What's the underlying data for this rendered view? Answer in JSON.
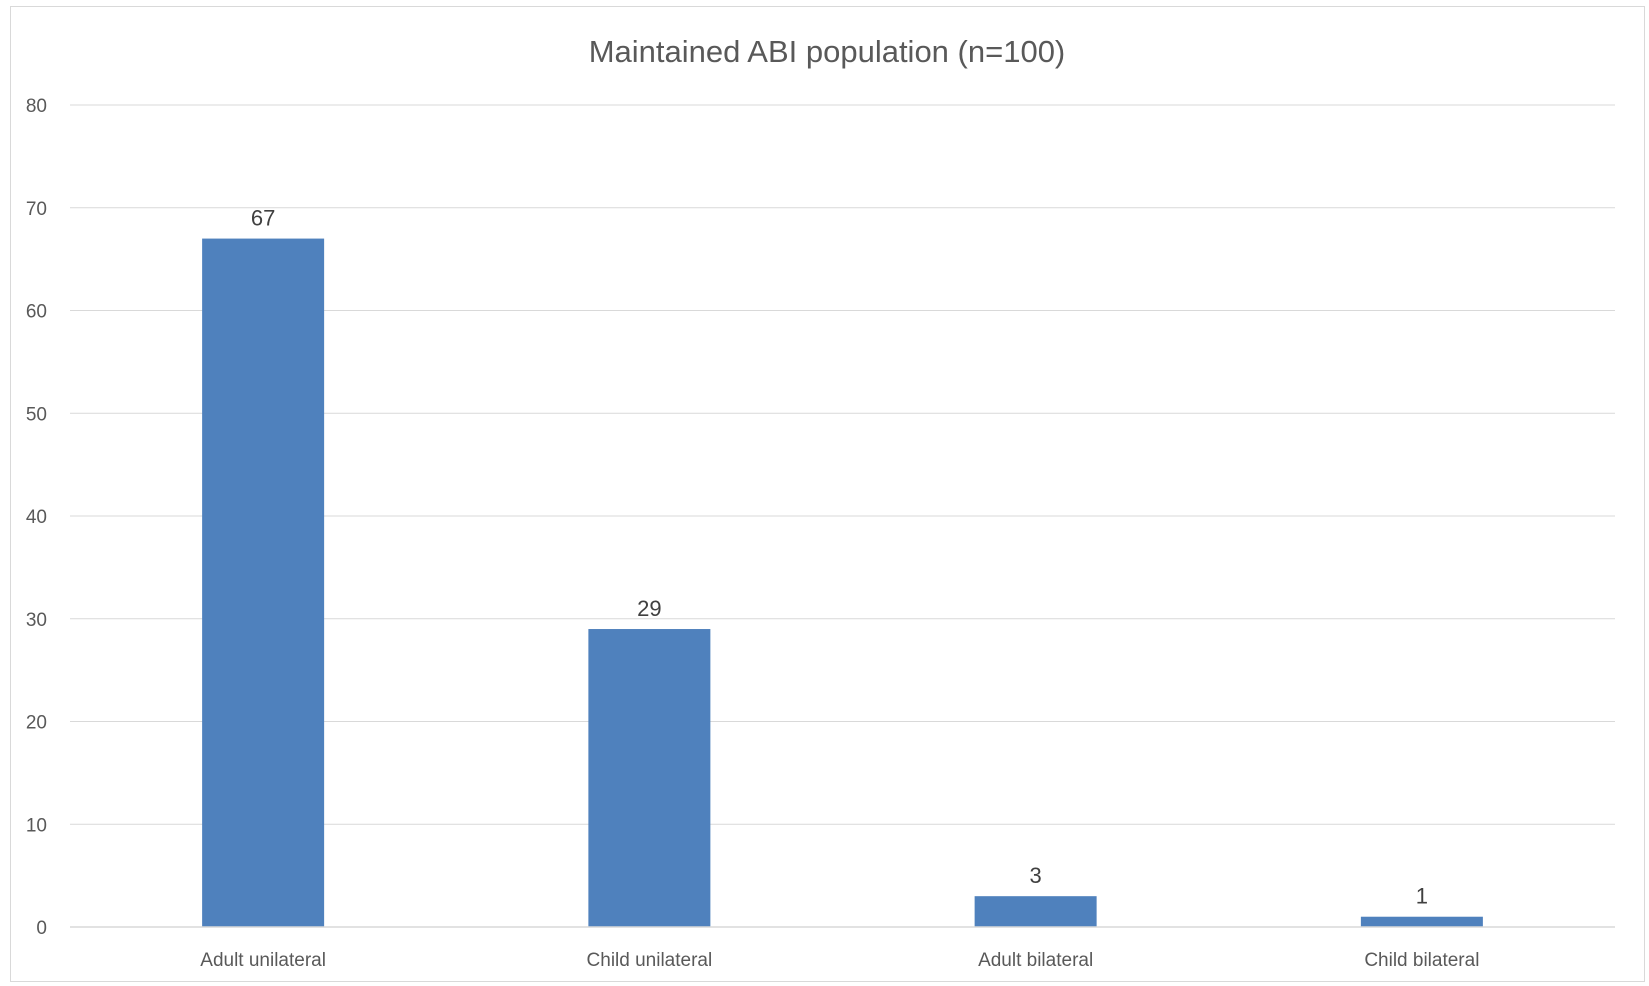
{
  "chart_data": {
    "type": "bar",
    "title": "Maintained ABI population (n=100)",
    "categories": [
      "Adult unilateral",
      "Child unilateral",
      "Adult bilateral",
      "Child bilateral"
    ],
    "values": [
      67,
      29,
      3,
      1
    ],
    "data_labels": [
      "67",
      "29",
      "3",
      "1"
    ],
    "xlabel": "",
    "ylabel": "",
    "ylim": [
      0,
      80
    ],
    "yticks": [
      0,
      10,
      20,
      30,
      40,
      50,
      60,
      70,
      80
    ],
    "ytick_labels": [
      "0",
      "10",
      "20",
      "30",
      "40",
      "50",
      "60",
      "70",
      "80"
    ],
    "grid": true,
    "legend": "none",
    "bar_color": "#4f81bd"
  }
}
